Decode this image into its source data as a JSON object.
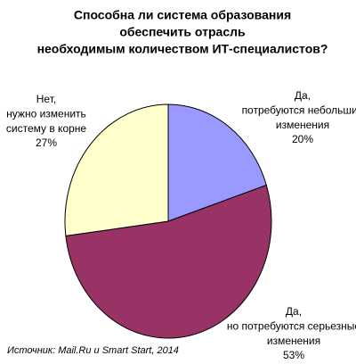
{
  "chart_data": {
    "type": "pie",
    "title": [
      "Способна ли система образования",
      "обеспечить отрасль",
      "необходимым количеством ИТ-специалистов?"
    ],
    "categories": [
      [
        "Да,",
        "потребуются небольшие",
        "изменения"
      ],
      [
        "Да,",
        "но потребуются серьезные",
        "изменения"
      ],
      [
        "Нет,",
        "нужно изменить",
        "систему в корне"
      ]
    ],
    "values": [
      20,
      53,
      27
    ],
    "value_labels": [
      "20%",
      "53%",
      "27%"
    ],
    "colors": [
      "#9999ff",
      "#993366",
      "#ffffcc"
    ],
    "source": "Источник: Mail.Ru и Smart Start, 2014"
  }
}
